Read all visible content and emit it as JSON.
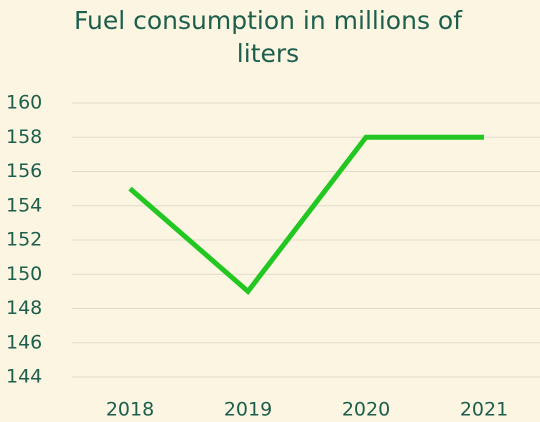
{
  "chart_data": {
    "type": "line",
    "title": "Fuel consumption in millions of liters",
    "categories": [
      "2018",
      "2019",
      "2020",
      "2021"
    ],
    "series": [
      {
        "name": "Fuel consumption",
        "color": "#22c722",
        "values": [
          155,
          149,
          158,
          158
        ]
      }
    ],
    "ylim": [
      144,
      160
    ],
    "yticks": [
      144,
      146,
      148,
      150,
      152,
      154,
      156,
      158,
      160
    ],
    "grid": true
  }
}
